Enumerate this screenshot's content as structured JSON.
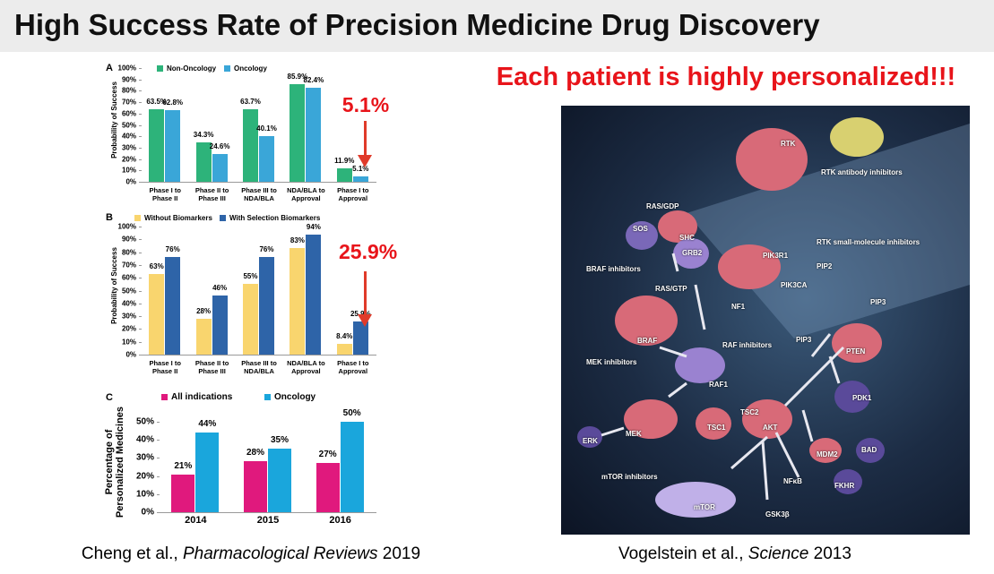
{
  "title": "High Success Rate of Precision Medicine Drug Discovery",
  "chart_data": [
    {
      "type": "bar",
      "panel": "A",
      "y_label": "Probability of Success",
      "categories": [
        "Phase I to Phase II",
        "Phase II to Phase III",
        "Phase III to NDA/BLA",
        "NDA/BLA to Approval",
        "Phase I to Approval"
      ],
      "series": [
        {
          "name": "Non-Oncology",
          "color": "#2db37a",
          "values": [
            63.5,
            34.3,
            63.7,
            85.9,
            11.9
          ],
          "value_labels": [
            "63.5%",
            "34.3%",
            "63.7%",
            "85.9%",
            "11.9%"
          ]
        },
        {
          "name": "Oncology",
          "color": "#3aa6d8",
          "values": [
            62.8,
            24.6,
            40.1,
            82.4,
            5.1
          ],
          "value_labels": [
            "62.8%",
            "24.6%",
            "40.1%",
            "82.4%",
            "5.1%"
          ]
        }
      ],
      "ylim": [
        0,
        100
      ],
      "yticks": [
        {
          "value": 0,
          "label": "0%"
        },
        {
          "value": 10,
          "label": "10%"
        },
        {
          "value": 20,
          "label": "20%"
        },
        {
          "value": 30,
          "label": "30%"
        },
        {
          "value": 40,
          "label": "40%"
        },
        {
          "value": 50,
          "label": "50%"
        },
        {
          "value": 60,
          "label": "60%"
        },
        {
          "value": 70,
          "label": "70%"
        },
        {
          "value": 80,
          "label": "80%"
        },
        {
          "value": 90,
          "label": "90%"
        },
        {
          "value": 100,
          "label": "100%"
        }
      ],
      "annotation": "5.1%"
    },
    {
      "type": "bar",
      "panel": "B",
      "y_label": "Probability of Success",
      "categories": [
        "Phase I to Phase II",
        "Phase II to Phase III",
        "Phase III to NDA/BLA",
        "NDA/BLA to Approval",
        "Phase I to Approval"
      ],
      "series": [
        {
          "name": "Without Biomarkers",
          "color": "#f9d56e",
          "values": [
            63,
            28,
            55,
            83,
            8.4
          ],
          "value_labels": [
            "63%",
            "28%",
            "55%",
            "83%",
            "8.4%"
          ]
        },
        {
          "name": "With Selection Biomarkers",
          "color": "#2e64a8",
          "values": [
            76,
            46,
            76,
            94,
            25.9
          ],
          "value_labels": [
            "76%",
            "46%",
            "76%",
            "94%",
            "25.9%"
          ]
        }
      ],
      "ylim": [
        0,
        100
      ],
      "yticks": [
        {
          "value": 0,
          "label": "0%"
        },
        {
          "value": 10,
          "label": "10%"
        },
        {
          "value": 20,
          "label": "20%"
        },
        {
          "value": 30,
          "label": "30%"
        },
        {
          "value": 40,
          "label": "40%"
        },
        {
          "value": 50,
          "label": "50%"
        },
        {
          "value": 60,
          "label": "60%"
        },
        {
          "value": 70,
          "label": "70%"
        },
        {
          "value": 80,
          "label": "80%"
        },
        {
          "value": 90,
          "label": "90%"
        },
        {
          "value": 100,
          "label": "100%"
        }
      ],
      "annotation": "25.9%"
    },
    {
      "type": "bar",
      "panel": "C",
      "y_label": "Percentage of Personalized Medicines",
      "categories": [
        "2014",
        "2015",
        "2016"
      ],
      "series": [
        {
          "name": "All indications",
          "color": "#e0197d",
          "values": [
            21,
            28,
            27
          ],
          "value_labels": [
            "21%",
            "28%",
            "27%"
          ]
        },
        {
          "name": "Oncology",
          "color": "#1aa6dc",
          "values": [
            44,
            35,
            50
          ],
          "value_labels": [
            "44%",
            "35%",
            "50%"
          ]
        }
      ],
      "ylim": [
        0,
        55
      ],
      "yticks": [
        {
          "value": 0,
          "label": "0%"
        },
        {
          "value": 10,
          "label": "10%"
        },
        {
          "value": 20,
          "label": "20%"
        },
        {
          "value": 30,
          "label": "30%"
        },
        {
          "value": 40,
          "label": "40%"
        },
        {
          "value": 50,
          "label": "50%"
        }
      ]
    }
  ],
  "headline": "Each patient is highly personalized!!!",
  "pathway_labels": [
    "RTK",
    "RTK antibody inhibitors",
    "RAS/GDP",
    "SOS",
    "SHC",
    "GRB2",
    "BRAF inhibitors",
    "RAS/GTP",
    "NF1",
    "PIK3R1",
    "PIP2",
    "PIK3CA",
    "PIP3",
    "RTK small-molecule inhibitors",
    "BRAF",
    "RAF inhibitors",
    "PIP3",
    "MEK inhibitors",
    "RAF1",
    "PTEN",
    "PDK1",
    "TSC2",
    "TSC1",
    "AKT",
    "MEK",
    "ERK",
    "BAD",
    "MDM2",
    "mTOR inhibitors",
    "NFκB",
    "FKHR",
    "mTOR",
    "GSK3β"
  ],
  "citations": {
    "left": [
      "Cheng et al.,",
      "Pharmacological Reviews",
      "2019"
    ],
    "right": [
      "Vogelstein  et al.,",
      "Science",
      "2013"
    ]
  }
}
